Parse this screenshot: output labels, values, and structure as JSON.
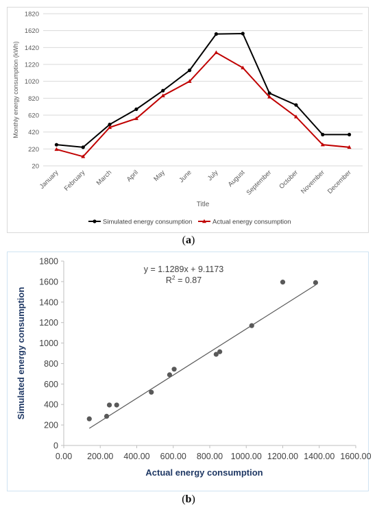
{
  "chart_data": [
    {
      "type": "line",
      "title": "",
      "xlabel": "Title",
      "ylabel": "Monthly energy consumption (kWh)",
      "ylim": [
        20,
        1820
      ],
      "y_ticks": [
        "20",
        "220",
        "420",
        "620",
        "820",
        "1020",
        "1220",
        "1420",
        "1620",
        "1820"
      ],
      "grid": true,
      "legend_position": "bottom",
      "categories": [
        "January",
        "February",
        "March",
        "April",
        "May",
        "June",
        "July",
        "August",
        "September",
        "October",
        "November",
        "December"
      ],
      "series": [
        {
          "name": "Simulated energy consumption",
          "color": "#000000",
          "marker": "circle",
          "values": [
            270,
            240,
            510,
            690,
            910,
            1150,
            1580,
            1585,
            880,
            740,
            390,
            390
          ]
        },
        {
          "name": "Actual energy consumption",
          "color": "#c00000",
          "marker": "triangle",
          "values": [
            215,
            130,
            475,
            580,
            850,
            1020,
            1360,
            1180,
            835,
            600,
            270,
            240
          ]
        }
      ],
      "caption": "(a)"
    },
    {
      "type": "scatter",
      "title": "",
      "xlabel": "Actual energy consumption",
      "ylabel": "Simulated energy consumption",
      "xlim": [
        0,
        1600
      ],
      "ylim": [
        0,
        1800
      ],
      "x_ticks": [
        "0.00",
        "200.00",
        "400.00",
        "600.00",
        "800.00",
        "1000.00",
        "1200.00",
        "1400.00",
        "1600.00"
      ],
      "y_ticks": [
        "0",
        "200",
        "400",
        "600",
        "800",
        "1000",
        "1200",
        "1400",
        "1600",
        "1800"
      ],
      "grid": false,
      "points": [
        {
          "x": 140,
          "y": 260
        },
        {
          "x": 235,
          "y": 285
        },
        {
          "x": 250,
          "y": 395
        },
        {
          "x": 290,
          "y": 395
        },
        {
          "x": 480,
          "y": 520
        },
        {
          "x": 580,
          "y": 690
        },
        {
          "x": 605,
          "y": 745
        },
        {
          "x": 835,
          "y": 890
        },
        {
          "x": 855,
          "y": 915
        },
        {
          "x": 1030,
          "y": 1170
        },
        {
          "x": 1200,
          "y": 1595
        },
        {
          "x": 1380,
          "y": 1590
        }
      ],
      "trendline": {
        "slope": 1.1289,
        "intercept": 9.1173,
        "x_range": [
          140,
          1380
        ]
      },
      "equation": "y = 1.1289x + 9.1173",
      "r2_prefix": "R",
      "r2_sup": "2",
      "r2_value": " = 0.87",
      "point_color": "#595959",
      "axis_label_color": "#1f3864",
      "caption": "(b)"
    }
  ]
}
